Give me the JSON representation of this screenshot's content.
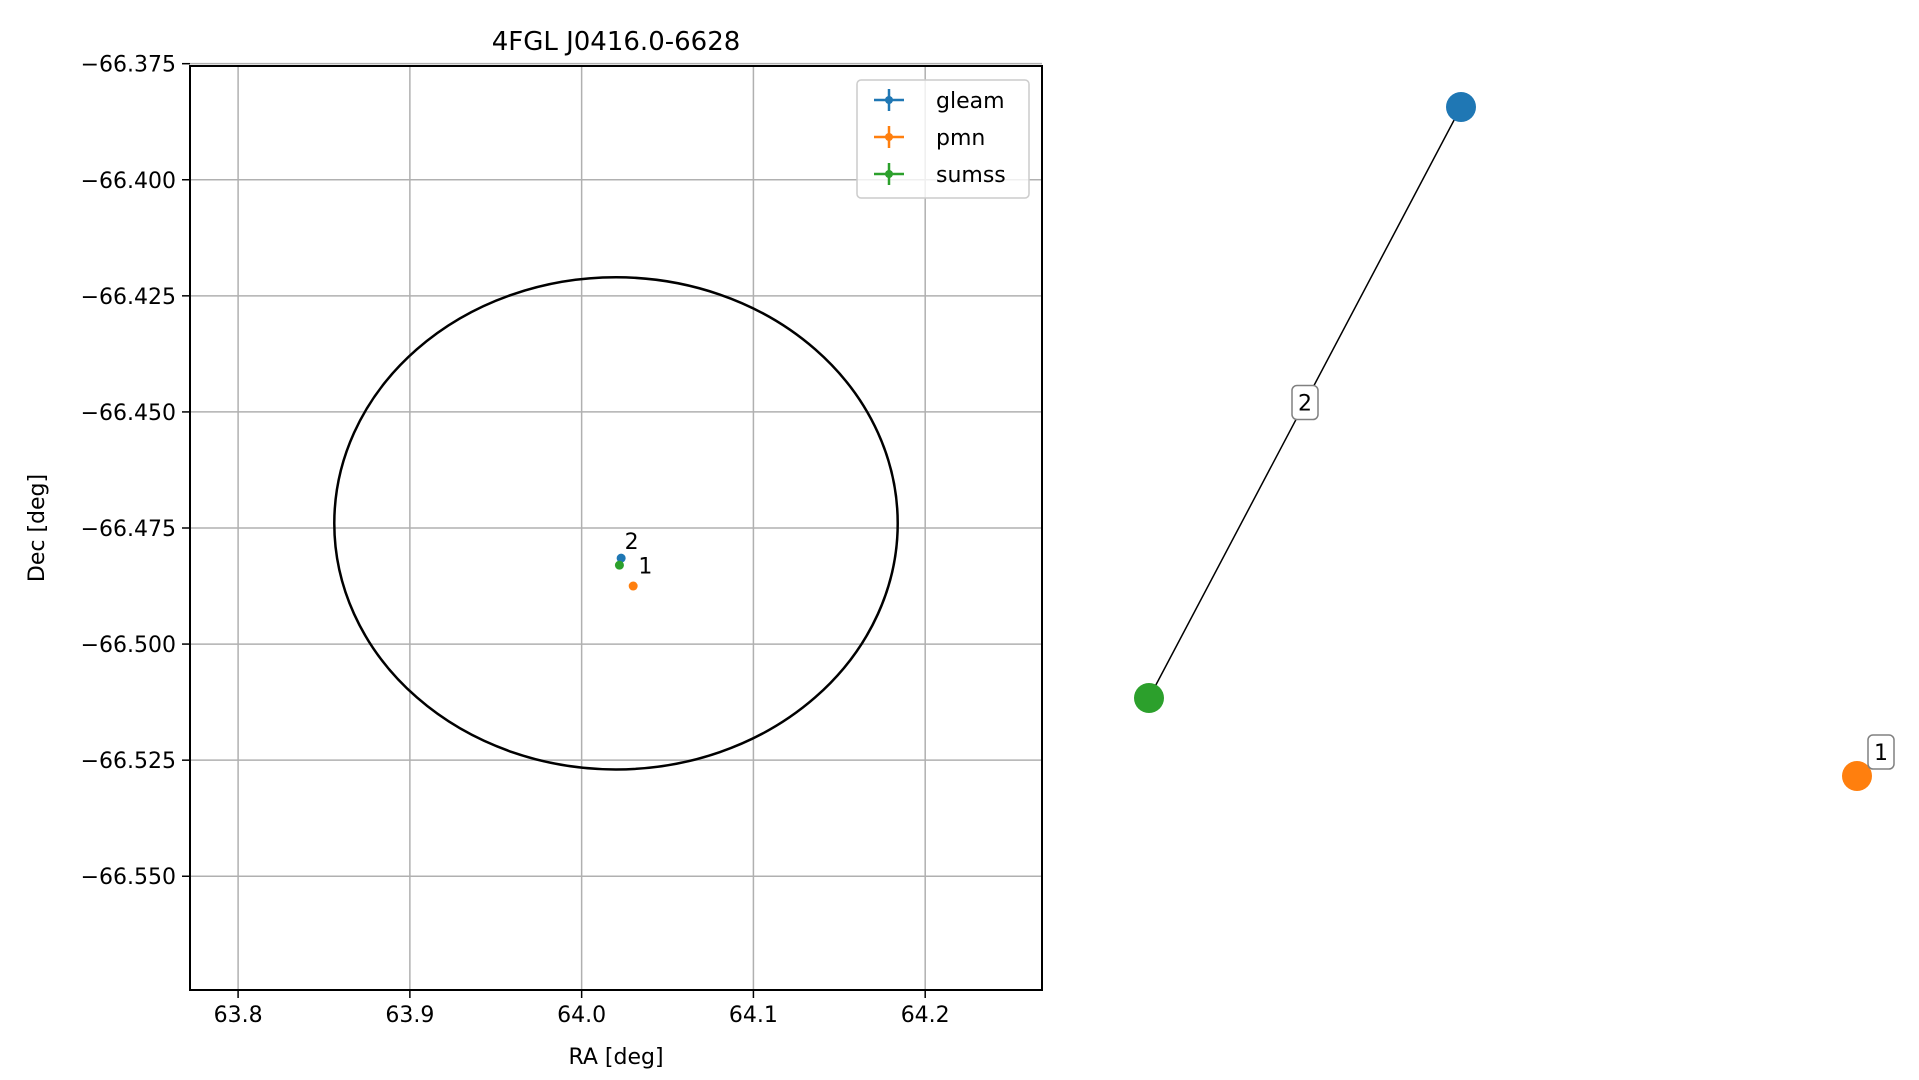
{
  "chart_data": [
    {
      "type": "scatter",
      "title": "4FGL J0416.0-6628",
      "xlabel": "RA [deg]",
      "ylabel": "Dec [deg]",
      "xlim": [
        63.772,
        64.268
      ],
      "ylim": [
        -66.5745,
        -66.3755
      ],
      "grid": true,
      "legend_position": "top-right",
      "x_ticks": [
        63.8,
        63.9,
        64.0,
        64.1,
        64.2
      ],
      "x_tick_labels": [
        "63.8",
        "63.9",
        "64.0",
        "64.1",
        "64.2"
      ],
      "y_ticks": [
        -66.375,
        -66.4,
        -66.425,
        -66.45,
        -66.475,
        -66.5,
        -66.525,
        -66.55
      ],
      "y_tick_labels": [
        "−66.375",
        "−66.400",
        "−66.425",
        "−66.450",
        "−66.475",
        "−66.500",
        "−66.525",
        "−66.550"
      ],
      "series": [
        {
          "name": "gleam",
          "color": "#1f77b4",
          "x": [
            64.023
          ],
          "y": [
            -66.4815
          ]
        },
        {
          "name": "pmn",
          "color": "#ff7f0e",
          "x": [
            64.03
          ],
          "y": [
            -66.4875
          ]
        },
        {
          "name": "sumss",
          "color": "#2ca02c",
          "x": [
            64.022
          ],
          "y": [
            -66.483
          ]
        }
      ],
      "annotations": [
        {
          "text": "2",
          "x": 64.025,
          "y": -66.4795
        },
        {
          "text": "1",
          "x": 64.033,
          "y": -66.4848
        }
      ],
      "error_ellipse": {
        "center": [
          64.02,
          -66.474
        ],
        "semi_axis_ra": 0.164,
        "semi_axis_dec": 0.053,
        "color": "#000000"
      }
    },
    {
      "type": "graph",
      "nodes": [
        {
          "id": "gleam",
          "color": "#1f77b4"
        },
        {
          "id": "sumss",
          "color": "#2ca02c"
        },
        {
          "id": "pmn",
          "color": "#ff7f0e"
        }
      ],
      "edges": [
        {
          "source": "gleam",
          "target": "sumss",
          "label": "2"
        }
      ],
      "isolated_labels": [
        {
          "node": "pmn",
          "label": "1"
        }
      ]
    }
  ]
}
